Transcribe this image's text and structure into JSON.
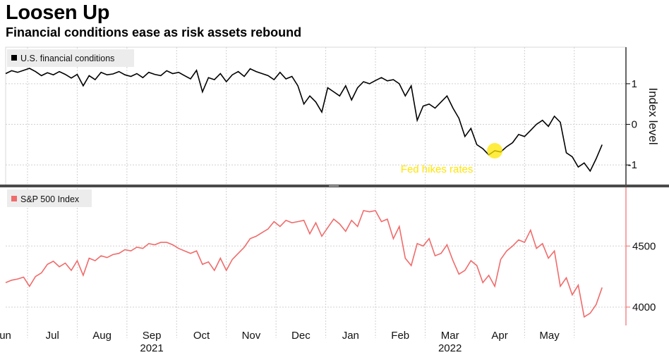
{
  "header": {
    "title": "Loosen Up",
    "subtitle": "Financial conditions ease as risk assets rebound"
  },
  "chart_data": [
    {
      "type": "line",
      "panel": "top",
      "legend": "U.S. financial conditions",
      "ylabel": "Index level",
      "ylim": [
        -1.5,
        1.9
      ],
      "yticks": [
        1,
        0,
        -1
      ],
      "color": "#000000",
      "annotation": {
        "text": "Fed hikes rates",
        "x": 2022.2,
        "color": "#ffe500"
      },
      "xlim": [
        2021.38,
        2022.42
      ],
      "series": [
        {
          "name": "U.S. financial conditions",
          "x": [
            2021.38,
            2021.39,
            2021.4,
            2021.41,
            2021.42,
            2021.43,
            2021.44,
            2021.45,
            2021.46,
            2021.47,
            2021.48,
            2021.49,
            2021.5,
            2021.51,
            2021.52,
            2021.53,
            2021.54,
            2021.55,
            2021.56,
            2021.57,
            2021.58,
            2021.59,
            2021.6,
            2021.61,
            2021.62,
            2021.63,
            2021.64,
            2021.65,
            2021.66,
            2021.67,
            2021.68,
            2021.69,
            2021.7,
            2021.71,
            2021.72,
            2021.73,
            2021.74,
            2021.75,
            2021.76,
            2021.77,
            2021.78,
            2021.79,
            2021.8,
            2021.81,
            2021.82,
            2021.83,
            2021.84,
            2021.85,
            2021.86,
            2021.87,
            2021.88,
            2021.89,
            2021.9,
            2021.91,
            2021.92,
            2021.93,
            2021.94,
            2021.95,
            2021.96,
            2021.97,
            2021.98,
            2021.99,
            2022.0,
            2022.01,
            2022.02,
            2022.03,
            2022.04,
            2022.05,
            2022.06,
            2022.07,
            2022.08,
            2022.09,
            2022.1,
            2022.11,
            2022.12,
            2022.13,
            2022.14,
            2022.15,
            2022.16,
            2022.17,
            2022.18,
            2022.19,
            2022.2,
            2022.21,
            2022.22,
            2022.23,
            2022.24,
            2022.25,
            2022.26,
            2022.27,
            2022.28,
            2022.29,
            2022.3,
            2022.31,
            2022.32,
            2022.33,
            2022.34,
            2022.35,
            2022.36,
            2022.37,
            2022.38
          ],
          "values": [
            1.25,
            1.32,
            1.28,
            1.33,
            1.38,
            1.3,
            1.2,
            1.27,
            1.22,
            1.3,
            1.23,
            1.14,
            1.23,
            0.95,
            1.2,
            1.1,
            1.28,
            1.22,
            1.24,
            1.3,
            1.22,
            1.18,
            1.25,
            1.15,
            1.28,
            1.23,
            1.2,
            1.32,
            1.25,
            1.28,
            1.2,
            1.12,
            1.33,
            0.8,
            1.15,
            1.1,
            1.25,
            1.05,
            1.22,
            1.3,
            1.18,
            1.37,
            1.3,
            1.25,
            1.2,
            1.1,
            1.28,
            1.12,
            1.18,
            0.95,
            0.5,
            0.7,
            0.55,
            0.3,
            0.9,
            0.8,
            0.7,
            0.95,
            0.6,
            0.9,
            1.05,
            1.0,
            1.08,
            1.15,
            1.07,
            1.1,
            1.0,
            0.7,
            0.95,
            0.1,
            0.45,
            0.5,
            0.4,
            0.55,
            0.7,
            0.4,
            0.15,
            -0.3,
            -0.1,
            -0.5,
            -0.6,
            -0.75,
            -0.65,
            -0.68,
            -0.55,
            -0.45,
            -0.25,
            -0.3,
            -0.15,
            0.0,
            0.1,
            -0.05,
            0.2,
            0.05,
            -0.7,
            -0.8,
            -1.05,
            -0.95,
            -1.15,
            -0.85,
            -0.5
          ]
        }
      ]
    },
    {
      "type": "line",
      "panel": "bottom",
      "legend": "S&P 500 Index",
      "ylim": [
        3850,
        4980
      ],
      "yticks": [
        4500,
        4000
      ],
      "color": "#f06b6b",
      "xlim": [
        2021.38,
        2022.42
      ],
      "series": [
        {
          "name": "S&P 500 Index",
          "x": [
            2021.38,
            2021.39,
            2021.4,
            2021.41,
            2021.42,
            2021.43,
            2021.44,
            2021.45,
            2021.46,
            2021.47,
            2021.48,
            2021.49,
            2021.5,
            2021.51,
            2021.52,
            2021.53,
            2021.54,
            2021.55,
            2021.56,
            2021.57,
            2021.58,
            2021.59,
            2021.6,
            2021.61,
            2021.62,
            2021.63,
            2021.64,
            2021.65,
            2021.66,
            2021.67,
            2021.68,
            2021.69,
            2021.7,
            2021.71,
            2021.72,
            2021.73,
            2021.74,
            2021.75,
            2021.76,
            2021.77,
            2021.78,
            2021.79,
            2021.8,
            2021.81,
            2021.82,
            2021.83,
            2021.84,
            2021.85,
            2021.86,
            2021.87,
            2021.88,
            2021.89,
            2021.9,
            2021.91,
            2021.92,
            2021.93,
            2021.94,
            2021.95,
            2021.96,
            2021.97,
            2021.98,
            2021.99,
            2022.0,
            2022.01,
            2022.02,
            2022.03,
            2022.04,
            2022.05,
            2022.06,
            2022.07,
            2022.08,
            2022.09,
            2022.1,
            2022.11,
            2022.12,
            2022.13,
            2022.14,
            2022.15,
            2022.16,
            2022.17,
            2022.18,
            2022.19,
            2022.2,
            2022.21,
            2022.22,
            2022.23,
            2022.24,
            2022.25,
            2022.26,
            2022.27,
            2022.28,
            2022.29,
            2022.3,
            2022.31,
            2022.32,
            2022.33,
            2022.34,
            2022.35,
            2022.36,
            2022.37,
            2022.38
          ],
          "values": [
            4200,
            4220,
            4230,
            4245,
            4170,
            4250,
            4280,
            4350,
            4375,
            4330,
            4360,
            4300,
            4380,
            4260,
            4400,
            4380,
            4420,
            4405,
            4430,
            4440,
            4470,
            4460,
            4490,
            4480,
            4520,
            4510,
            4530,
            4530,
            4510,
            4480,
            4460,
            4440,
            4460,
            4350,
            4370,
            4300,
            4400,
            4300,
            4390,
            4440,
            4490,
            4560,
            4580,
            4610,
            4640,
            4700,
            4660,
            4710,
            4690,
            4700,
            4710,
            4600,
            4690,
            4580,
            4650,
            4720,
            4680,
            4620,
            4710,
            4660,
            4790,
            4780,
            4790,
            4700,
            4720,
            4560,
            4660,
            4400,
            4340,
            4520,
            4500,
            4560,
            4420,
            4440,
            4510,
            4380,
            4270,
            4300,
            4380,
            4340,
            4200,
            4260,
            4170,
            4390,
            4460,
            4500,
            4550,
            4530,
            4630,
            4480,
            4520,
            4400,
            4460,
            4170,
            4240,
            4100,
            4180,
            3920,
            3950,
            4020,
            4160
          ]
        }
      ]
    }
  ],
  "x_axis": {
    "months": [
      "Jun",
      "Jul",
      "Aug",
      "Sep",
      "Oct",
      "Nov",
      "Dec",
      "Jan",
      "Feb",
      "Mar",
      "Apr",
      "May"
    ],
    "years": [
      "2021",
      "2022"
    ]
  }
}
